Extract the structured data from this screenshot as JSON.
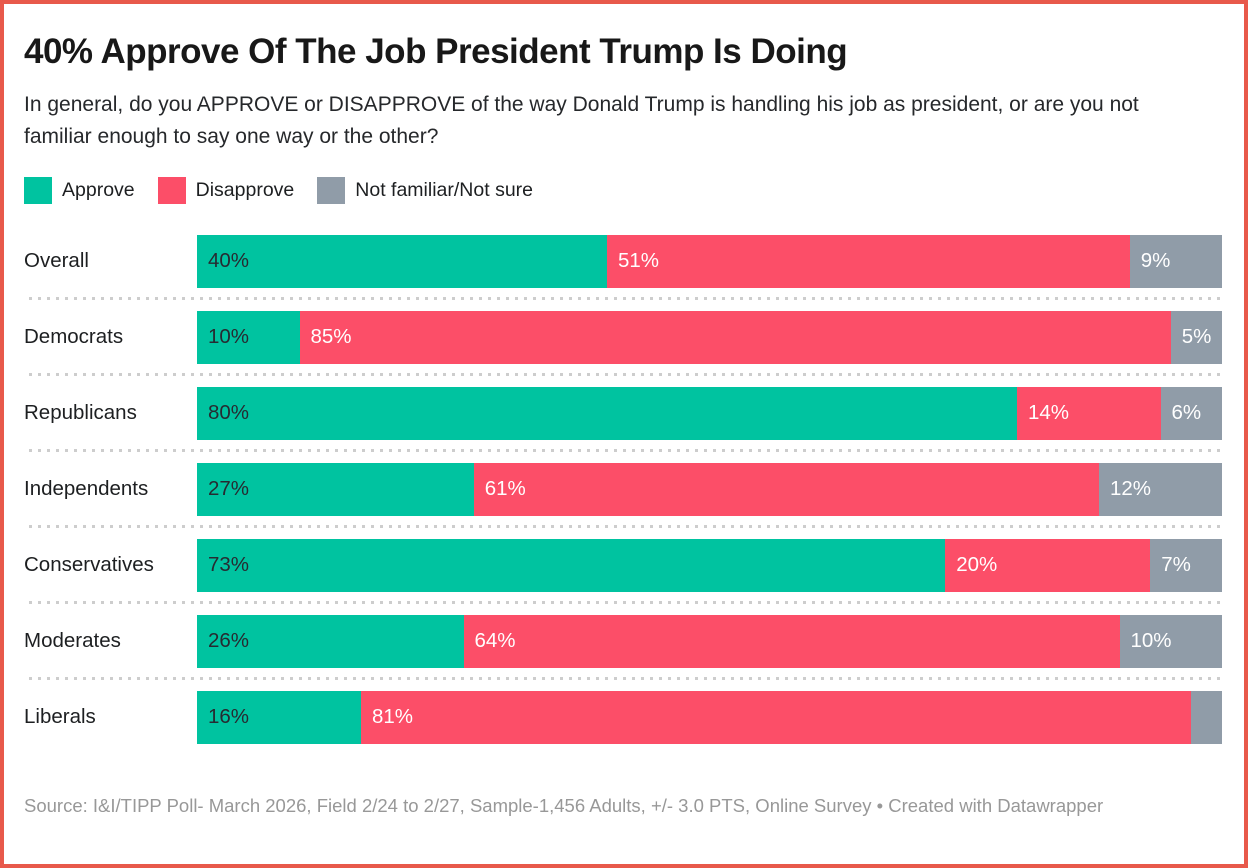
{
  "header": {
    "title": "40% Approve Of The Job President Trump Is Doing",
    "subtitle": "In general, do you APPROVE or DISAPPROVE of the way Donald Trump is handling his job as president, or are you not familiar enough to say one way or the other?"
  },
  "footer": {
    "text": "Source: I&I/TIPP Poll- March 2026, Field 2/24 to 2/27, Sample-1,456 Adults, +/- 3.0 PTS, Online Survey  • Created with Datawrapper"
  },
  "colors": {
    "frame_border": "#e8594b",
    "approve": "#00c3a0",
    "disapprove": "#fc4e68",
    "not_sure": "#909ca8",
    "separator": "#cdcdcd",
    "title_text": "#181818",
    "footer_text": "#989898"
  },
  "chart_data": {
    "type": "bar",
    "stacked": true,
    "orientation": "horizontal",
    "title": "40% Approve Of The Job President Trump Is Doing",
    "xlim": [
      0,
      100
    ],
    "value_suffix": "%",
    "legend_position": "top",
    "grid": false,
    "categories": [
      "Overall",
      "Democrats",
      "Republicans",
      "Independents",
      "Conservatives",
      "Moderates",
      "Liberals"
    ],
    "series": [
      {
        "name": "Approve",
        "color": "#00c3a0",
        "label_color": "#262b31",
        "values": [
          40,
          10,
          80,
          27,
          73,
          26,
          16
        ]
      },
      {
        "name": "Disapprove",
        "color": "#fc4e68",
        "label_color": "#ffffff",
        "values": [
          51,
          85,
          14,
          61,
          20,
          64,
          81
        ]
      },
      {
        "name": "Not familiar/Not sure",
        "color": "#909ca8",
        "label_color": "#ffffff",
        "values": [
          9,
          5,
          6,
          12,
          7,
          10,
          3
        ]
      }
    ],
    "segment_labels": [
      [
        "40%",
        "51%",
        "9%"
      ],
      [
        "10%",
        "85%",
        "5%"
      ],
      [
        "80%",
        "14%",
        "6%"
      ],
      [
        "27%",
        "61%",
        "12%"
      ],
      [
        "73%",
        "20%",
        "7%"
      ],
      [
        "26%",
        "64%",
        "10%"
      ],
      [
        "16%",
        "81%",
        ""
      ]
    ]
  }
}
